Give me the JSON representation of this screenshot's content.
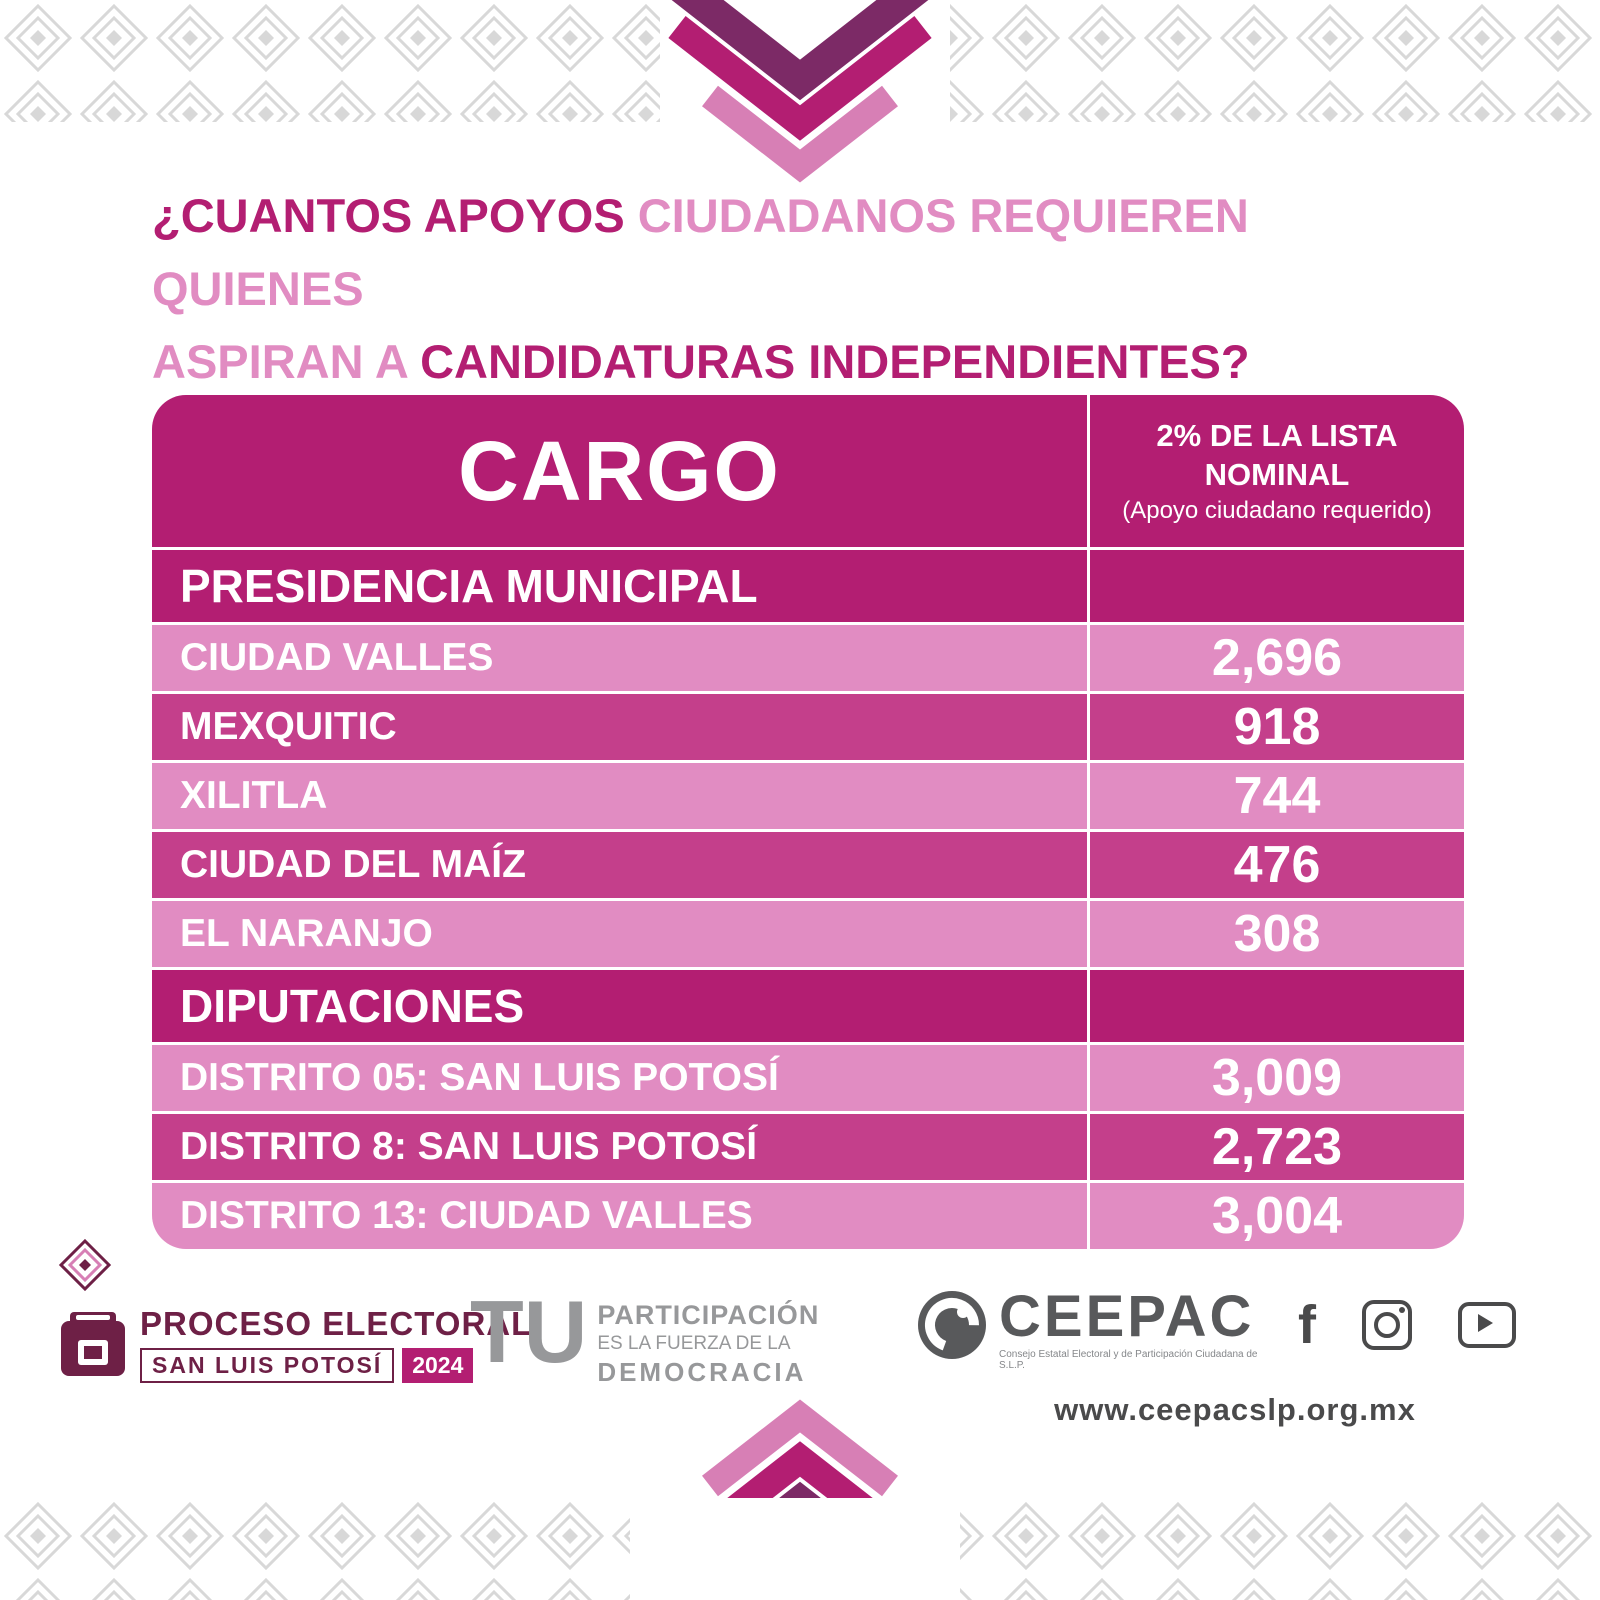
{
  "colors": {
    "primary": "#b31e72",
    "rowAlt": "#c43f8b",
    "rowLight": "#e18cc2",
    "titlePink": "#e18cc2",
    "chevDark": "#7c2a66",
    "chevMid": "#b31e72",
    "chevPink": "#d77fb5",
    "patternGray": "#d8d8d8",
    "footerGray": "#58595b",
    "maroon": "#6e2046",
    "iconGray": "#4a4a4b"
  },
  "title": {
    "line1_dark": "¿CUANTOS APOYOS",
    "line1_pink": "CIUDADANOS REQUIEREN QUIENES",
    "line2_pink": "ASPIRAN A",
    "line2_dark": "CANDIDATURAS INDEPENDIENTES?"
  },
  "table": {
    "header": {
      "cargo": "CARGO",
      "col2_title": "2% DE LA LISTA NOMINAL",
      "col2_subtitle": "(Apoyo ciudadano requerido)"
    },
    "sections": [
      {
        "name": "PRESIDENCIA MUNICIPAL",
        "rows": [
          {
            "label": "CIUDAD VALLES",
            "value": "2,696"
          },
          {
            "label": "MEXQUITIC",
            "value": "918"
          },
          {
            "label": "XILITLA",
            "value": "744"
          },
          {
            "label": "CIUDAD DEL MAÍZ",
            "value": "476"
          },
          {
            "label": "EL NARANJO",
            "value": "308"
          }
        ]
      },
      {
        "name": "DIPUTACIONES",
        "rows": [
          {
            "label": "DISTRITO 05: SAN LUIS POTOSÍ",
            "value": "3,009"
          },
          {
            "label": "DISTRITO 8: SAN LUIS POTOSÍ",
            "value": "2,723"
          },
          {
            "label": "DISTRITO 13: CIUDAD VALLES",
            "value": "3,004"
          }
        ]
      }
    ]
  },
  "chart_data": {
    "type": "table",
    "title": "¿Cuantos apoyos ciudadanos requieren quienes aspiran a candidaturas independientes?",
    "columns": [
      "CARGO",
      "2% DE LA LISTA NOMINAL (Apoyo ciudadano requerido)"
    ],
    "sections": [
      {
        "section": "PRESIDENCIA MUNICIPAL",
        "rows": [
          [
            "CIUDAD VALLES",
            2696
          ],
          [
            "MEXQUITIC",
            918
          ],
          [
            "XILITLA",
            744
          ],
          [
            "CIUDAD DEL MAÍZ",
            476
          ],
          [
            "EL NARANJO",
            308
          ]
        ]
      },
      {
        "section": "DIPUTACIONES",
        "rows": [
          [
            "DISTRITO 05: SAN LUIS POTOSÍ",
            3009
          ],
          [
            "DISTRITO 8: SAN LUIS POTOSÍ",
            2723
          ],
          [
            "DISTRITO 13: CIUDAD VALLES",
            3004
          ]
        ]
      }
    ]
  },
  "footer": {
    "proceso": {
      "title": "PROCESO ELECTORAL",
      "state": "SAN LUIS POTOSÍ",
      "year": "2024"
    },
    "participacion": {
      "tu": "TU",
      "line1": "PARTICIPACIÓN",
      "line2": "ES LA FUERZA DE LA",
      "line3": "DEMOCRACIA"
    },
    "ceepac": {
      "name": "CEEPAC",
      "tagline": "Consejo Estatal Electoral y de Participación Ciudadana de S.L.P."
    },
    "social": {
      "facebook_glyph": "f"
    },
    "website": "www.ceepacslp.org.mx"
  }
}
